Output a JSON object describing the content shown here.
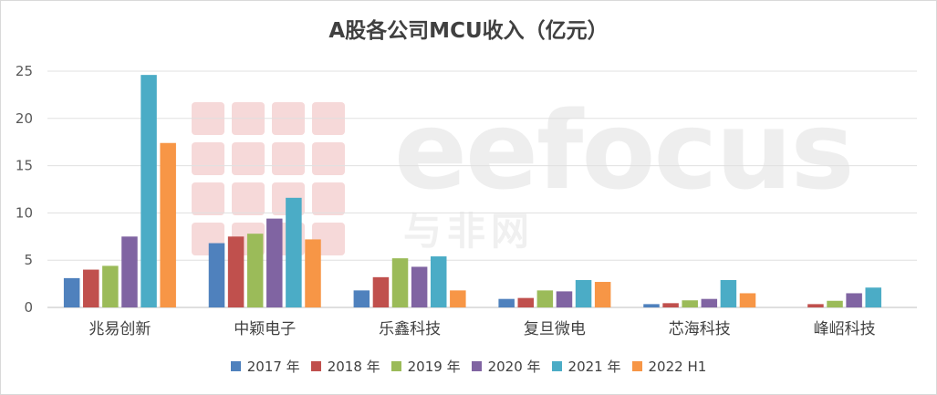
{
  "chart_data": {
    "type": "bar",
    "title": "A股各公司MCU收入（亿元）",
    "xlabel": "",
    "ylabel": "",
    "ylim": [
      0,
      25
    ],
    "yticks": [
      0,
      5,
      10,
      15,
      20,
      25
    ],
    "grid": true,
    "legend_position": "bottom",
    "categories": [
      "兆易创新",
      "中颖电子",
      "乐鑫科技",
      "复旦微电",
      "芯海科技",
      "峰岹科技"
    ],
    "series": [
      {
        "name": "2017 年",
        "color": "#4f81bd",
        "values": [
          3.1,
          6.8,
          1.8,
          0.9,
          0.35,
          0.0
        ]
      },
      {
        "name": "2018 年",
        "color": "#c0504d",
        "values": [
          4.0,
          7.5,
          3.2,
          1.0,
          0.45,
          0.35
        ]
      },
      {
        "name": "2019 年",
        "color": "#9bbb59",
        "values": [
          4.4,
          7.8,
          5.2,
          1.8,
          0.75,
          0.7
        ]
      },
      {
        "name": "2020 年",
        "color": "#8064a2",
        "values": [
          7.5,
          9.4,
          4.3,
          1.7,
          0.9,
          1.5
        ]
      },
      {
        "name": "2021 年",
        "color": "#4bacc6",
        "values": [
          24.6,
          11.6,
          5.4,
          2.9,
          2.9,
          2.1
        ]
      },
      {
        "name": "2022 H1",
        "color": "#f79646",
        "values": [
          17.4,
          7.2,
          1.8,
          2.7,
          1.5,
          null
        ]
      }
    ]
  },
  "watermark": {
    "text": "eefocus",
    "subtext": "与非网"
  }
}
